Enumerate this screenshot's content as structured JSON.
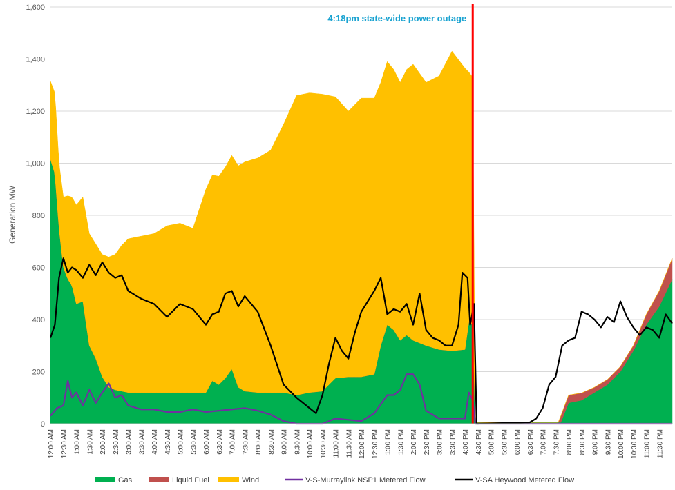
{
  "chart_data": {
    "type": "area",
    "ylabel": "Generation MW",
    "xlabel": "",
    "ylim": [
      0,
      1600
    ],
    "yticks": [
      0,
      200,
      400,
      600,
      800,
      1000,
      1200,
      1400,
      1600
    ],
    "ytick_labels": [
      "0",
      "200",
      "400",
      "600",
      "800",
      "1,000",
      "1,200",
      "1,400",
      "1,600"
    ],
    "grid": "horizontal",
    "legend_position": "bottom",
    "colors": {
      "gas": "#00b050",
      "liquid_fuel": "#c0504d",
      "wind": "#ffc000",
      "murraylink": "#7030a0",
      "heywood": "#000000",
      "outage_line": "#ff0000",
      "annotation": "#1aa3d1"
    },
    "x_tick_labels": [
      "12:00 AM",
      "12:30 AM",
      "1:00 AM",
      "1:30 AM",
      "2:00 AM",
      "2:30 AM",
      "3:00 AM",
      "3:30 AM",
      "4:00 AM",
      "4:30 AM",
      "5:00 AM",
      "5:30 AM",
      "6:00 AM",
      "6:30 AM",
      "7:00 AM",
      "7:30 AM",
      "8:00 AM",
      "8:30 AM",
      "9:00 AM",
      "9:30 AM",
      "10:00 AM",
      "10:30 AM",
      "11:00 AM",
      "11:30 AM",
      "12:00 PM",
      "12:30 PM",
      "1:00 PM",
      "1:30 PM",
      "2:00 PM",
      "2:30 PM",
      "3:00 PM",
      "3:30 PM",
      "4:00 PM",
      "4:30 PM",
      "5:00 PM",
      "5:30 PM",
      "6:00 PM",
      "6:30 PM",
      "7:00 PM",
      "7:30 PM",
      "8:00 PM",
      "8:30 PM",
      "9:00 PM",
      "9:30 PM",
      "10:00 PM",
      "10:30 PM",
      "11:00 PM",
      "11:30 PM"
    ],
    "annotation": {
      "text": "4:18pm state-wide power outage",
      "x_hours": 16.3
    },
    "series": [
      {
        "name": "Gas",
        "kind": "stacked-area",
        "points": [
          [
            0,
            1015
          ],
          [
            0.17,
            960
          ],
          [
            0.33,
            750
          ],
          [
            0.5,
            600
          ],
          [
            0.67,
            555
          ],
          [
            0.83,
            530
          ],
          [
            1.0,
            460
          ],
          [
            1.25,
            470
          ],
          [
            1.5,
            300
          ],
          [
            1.75,
            250
          ],
          [
            2.0,
            180
          ],
          [
            2.25,
            140
          ],
          [
            2.5,
            130
          ],
          [
            2.75,
            125
          ],
          [
            3.0,
            120
          ],
          [
            4.0,
            120
          ],
          [
            5.0,
            120
          ],
          [
            6.0,
            120
          ],
          [
            6.25,
            165
          ],
          [
            6.5,
            150
          ],
          [
            6.75,
            175
          ],
          [
            7.0,
            210
          ],
          [
            7.25,
            140
          ],
          [
            7.5,
            125
          ],
          [
            8.0,
            120
          ],
          [
            9.0,
            120
          ],
          [
            9.5,
            110
          ],
          [
            10.0,
            120
          ],
          [
            10.5,
            125
          ],
          [
            11.0,
            175
          ],
          [
            11.5,
            180
          ],
          [
            12.0,
            180
          ],
          [
            12.5,
            190
          ],
          [
            12.75,
            300
          ],
          [
            13.0,
            380
          ],
          [
            13.25,
            360
          ],
          [
            13.5,
            320
          ],
          [
            13.75,
            340
          ],
          [
            14.0,
            320
          ],
          [
            14.5,
            300
          ],
          [
            15.0,
            285
          ],
          [
            15.5,
            280
          ],
          [
            16.0,
            285
          ],
          [
            16.15,
            390
          ],
          [
            16.3,
            380
          ],
          [
            16.4,
            5
          ],
          [
            19.7,
            5
          ],
          [
            20.0,
            80
          ],
          [
            20.5,
            90
          ],
          [
            21.0,
            120
          ],
          [
            21.5,
            150
          ],
          [
            22.0,
            200
          ],
          [
            22.5,
            280
          ],
          [
            23.0,
            380
          ],
          [
            23.5,
            450
          ],
          [
            24.0,
            555
          ]
        ]
      },
      {
        "name": "Liquid Fuel",
        "kind": "stacked-area",
        "points": [
          [
            0,
            0
          ],
          [
            16.3,
            0
          ],
          [
            16.4,
            0
          ],
          [
            19.6,
            0
          ],
          [
            19.7,
            25
          ],
          [
            20.0,
            30
          ],
          [
            20.5,
            28
          ],
          [
            21.0,
            20
          ],
          [
            22.0,
            20
          ],
          [
            22.5,
            20
          ],
          [
            23.0,
            40
          ],
          [
            23.5,
            60
          ],
          [
            24.0,
            80
          ]
        ]
      },
      {
        "name": "Wind",
        "kind": "stacked-area",
        "points": [
          [
            0,
            300
          ],
          [
            0.17,
            310
          ],
          [
            0.33,
            250
          ],
          [
            0.5,
            270
          ],
          [
            0.67,
            320
          ],
          [
            0.83,
            340
          ],
          [
            1.0,
            380
          ],
          [
            1.25,
            400
          ],
          [
            1.5,
            430
          ],
          [
            1.75,
            440
          ],
          [
            2.0,
            470
          ],
          [
            2.25,
            500
          ],
          [
            2.5,
            520
          ],
          [
            2.75,
            560
          ],
          [
            3.0,
            590
          ],
          [
            3.5,
            600
          ],
          [
            4.0,
            610
          ],
          [
            4.5,
            640
          ],
          [
            5.0,
            650
          ],
          [
            5.5,
            630
          ],
          [
            6.0,
            780
          ],
          [
            6.5,
            800
          ],
          [
            7.0,
            820
          ],
          [
            7.5,
            880
          ],
          [
            8.0,
            900
          ],
          [
            8.5,
            930
          ],
          [
            9.0,
            1030
          ],
          [
            9.5,
            1150
          ],
          [
            10.0,
            1150
          ],
          [
            10.5,
            1140
          ],
          [
            11.0,
            1080
          ],
          [
            11.5,
            1020
          ],
          [
            12.0,
            1070
          ],
          [
            12.5,
            1060
          ],
          [
            12.75,
            1010
          ],
          [
            13.0,
            1010
          ],
          [
            13.25,
            1000
          ],
          [
            13.5,
            990
          ],
          [
            13.75,
            1020
          ],
          [
            14.0,
            1060
          ],
          [
            14.5,
            1010
          ],
          [
            15.0,
            1050
          ],
          [
            15.5,
            1150
          ],
          [
            16.0,
            1080
          ],
          [
            16.15,
            960
          ],
          [
            16.3,
            950
          ],
          [
            16.4,
            0
          ],
          [
            24.0,
            0
          ]
        ]
      },
      {
        "name": "V-S-Murraylink NSP1 Metered Flow",
        "kind": "line",
        "points": [
          [
            0,
            30
          ],
          [
            0.25,
            60
          ],
          [
            0.5,
            70
          ],
          [
            0.67,
            165
          ],
          [
            0.83,
            100
          ],
          [
            1.0,
            120
          ],
          [
            1.25,
            70
          ],
          [
            1.5,
            130
          ],
          [
            1.75,
            80
          ],
          [
            2.0,
            120
          ],
          [
            2.25,
            155
          ],
          [
            2.5,
            100
          ],
          [
            2.75,
            110
          ],
          [
            3.0,
            70
          ],
          [
            3.5,
            55
          ],
          [
            4.0,
            55
          ],
          [
            4.5,
            45
          ],
          [
            5.0,
            45
          ],
          [
            5.5,
            55
          ],
          [
            6.0,
            45
          ],
          [
            6.5,
            50
          ],
          [
            7.0,
            55
          ],
          [
            7.5,
            60
          ],
          [
            8.0,
            50
          ],
          [
            8.5,
            35
          ],
          [
            9.0,
            10
          ],
          [
            9.5,
            0
          ],
          [
            10.0,
            0
          ],
          [
            10.5,
            0
          ],
          [
            11.0,
            20
          ],
          [
            11.5,
            15
          ],
          [
            12.0,
            10
          ],
          [
            12.5,
            40
          ],
          [
            13.0,
            110
          ],
          [
            13.25,
            110
          ],
          [
            13.5,
            130
          ],
          [
            13.75,
            190
          ],
          [
            14.0,
            190
          ],
          [
            14.25,
            150
          ],
          [
            14.5,
            50
          ],
          [
            15.0,
            20
          ],
          [
            15.5,
            20
          ],
          [
            16.0,
            20
          ],
          [
            16.15,
            120
          ],
          [
            16.3,
            90
          ],
          [
            16.4,
            0
          ],
          [
            24.0,
            0
          ]
        ]
      },
      {
        "name": "V-SA Heywood Metered Flow",
        "kind": "line",
        "points": [
          [
            0,
            330
          ],
          [
            0.17,
            380
          ],
          [
            0.33,
            560
          ],
          [
            0.5,
            635
          ],
          [
            0.67,
            580
          ],
          [
            0.83,
            600
          ],
          [
            1.0,
            590
          ],
          [
            1.25,
            560
          ],
          [
            1.5,
            610
          ],
          [
            1.75,
            570
          ],
          [
            2.0,
            620
          ],
          [
            2.25,
            580
          ],
          [
            2.5,
            560
          ],
          [
            2.75,
            570
          ],
          [
            3.0,
            510
          ],
          [
            3.5,
            480
          ],
          [
            4.0,
            460
          ],
          [
            4.5,
            410
          ],
          [
            5.0,
            460
          ],
          [
            5.5,
            440
          ],
          [
            6.0,
            380
          ],
          [
            6.25,
            420
          ],
          [
            6.5,
            430
          ],
          [
            6.75,
            500
          ],
          [
            7.0,
            510
          ],
          [
            7.25,
            450
          ],
          [
            7.5,
            490
          ],
          [
            8.0,
            430
          ],
          [
            8.5,
            300
          ],
          [
            9.0,
            150
          ],
          [
            9.5,
            100
          ],
          [
            10.0,
            60
          ],
          [
            10.25,
            40
          ],
          [
            10.5,
            110
          ],
          [
            10.75,
            230
          ],
          [
            11.0,
            330
          ],
          [
            11.25,
            280
          ],
          [
            11.5,
            250
          ],
          [
            11.75,
            350
          ],
          [
            12.0,
            430
          ],
          [
            12.25,
            470
          ],
          [
            12.5,
            510
          ],
          [
            12.75,
            560
          ],
          [
            13.0,
            420
          ],
          [
            13.25,
            440
          ],
          [
            13.5,
            430
          ],
          [
            13.75,
            460
          ],
          [
            14.0,
            380
          ],
          [
            14.25,
            500
          ],
          [
            14.5,
            360
          ],
          [
            14.75,
            330
          ],
          [
            15.0,
            320
          ],
          [
            15.25,
            300
          ],
          [
            15.5,
            300
          ],
          [
            15.75,
            380
          ],
          [
            15.9,
            580
          ],
          [
            16.1,
            560
          ],
          [
            16.2,
            380
          ],
          [
            16.35,
            460
          ],
          [
            16.45,
            0
          ],
          [
            18.5,
            5
          ],
          [
            18.75,
            20
          ],
          [
            19.0,
            60
          ],
          [
            19.25,
            150
          ],
          [
            19.5,
            180
          ],
          [
            19.75,
            300
          ],
          [
            20.0,
            320
          ],
          [
            20.25,
            330
          ],
          [
            20.5,
            430
          ],
          [
            20.75,
            420
          ],
          [
            21.0,
            400
          ],
          [
            21.25,
            370
          ],
          [
            21.5,
            410
          ],
          [
            21.75,
            390
          ],
          [
            22.0,
            470
          ],
          [
            22.25,
            410
          ],
          [
            22.5,
            370
          ],
          [
            22.75,
            340
          ],
          [
            23.0,
            370
          ],
          [
            23.25,
            360
          ],
          [
            23.5,
            330
          ],
          [
            23.75,
            420
          ],
          [
            24.0,
            385
          ]
        ]
      }
    ]
  },
  "legend": {
    "items": [
      {
        "label": "Gas",
        "kind": "box",
        "color": "#00b050"
      },
      {
        "label": "Liquid Fuel",
        "kind": "box",
        "color": "#c0504d"
      },
      {
        "label": "Wind",
        "kind": "box",
        "color": "#ffc000"
      },
      {
        "label": "V-S-Murraylink NSP1 Metered Flow",
        "kind": "line",
        "color": "#7030a0"
      },
      {
        "label": "V-SA Heywood Metered Flow",
        "kind": "line",
        "color": "#000000"
      }
    ]
  }
}
